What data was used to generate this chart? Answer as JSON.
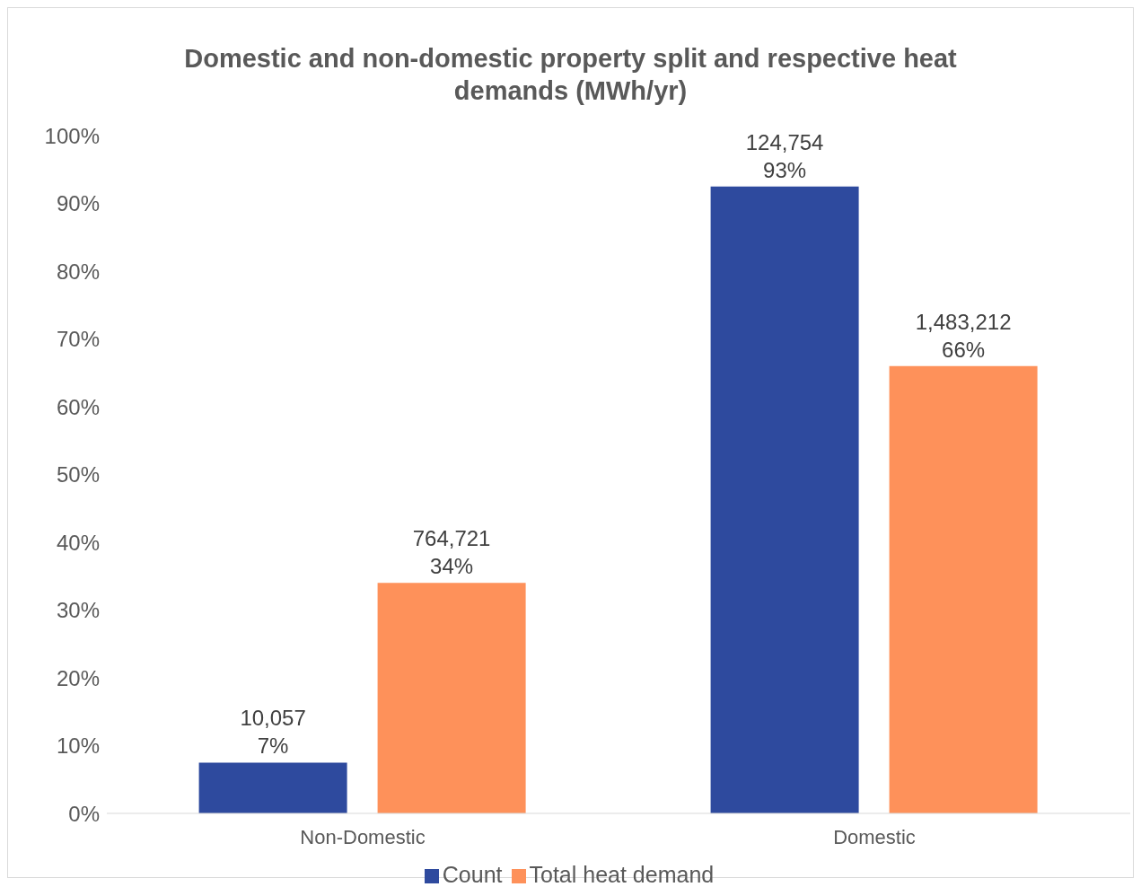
{
  "chart_data": {
    "type": "bar",
    "title": "Domestic and non-domestic property split and respective heat demands (MWh/yr)",
    "categories": [
      "Non-Domestic",
      "Domestic"
    ],
    "series": [
      {
        "name": "Count",
        "color": "#2e4a9e",
        "values": [
          7.5,
          92.5
        ],
        "value_labels": [
          "10,057\n7%",
          "124,754\n93%"
        ]
      },
      {
        "name": "Total heat demand",
        "color": "#fe915a",
        "values": [
          34,
          66
        ],
        "value_labels": [
          "764,721\n34%",
          "1,483,212\n66%"
        ]
      }
    ],
    "ylim": [
      0,
      100
    ],
    "yticks": [
      {
        "value": 0,
        "label": "0%"
      },
      {
        "value": 10,
        "label": "10%"
      },
      {
        "value": 20,
        "label": "20%"
      },
      {
        "value": 30,
        "label": "30%"
      },
      {
        "value": 40,
        "label": "40%"
      },
      {
        "value": 50,
        "label": "50%"
      },
      {
        "value": 60,
        "label": "60%"
      },
      {
        "value": 70,
        "label": "70%"
      },
      {
        "value": 80,
        "label": "80%"
      },
      {
        "value": 90,
        "label": "90%"
      },
      {
        "value": 100,
        "label": "100%"
      }
    ],
    "grid": false,
    "legend": "bottom"
  }
}
